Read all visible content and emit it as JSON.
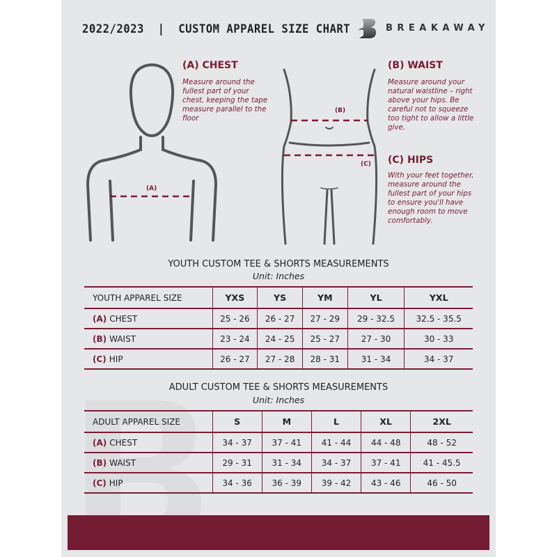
{
  "header": {
    "title": "2022/2023  |  CUSTOM APPAREL SIZE CHART",
    "brand": "BREAKAWAY",
    "logo_letter": "B"
  },
  "colors": {
    "accent": "#7a1b33",
    "background": "#e6e7e8",
    "band": "#731c32"
  },
  "measures": {
    "chest": {
      "heading": "(A) CHEST",
      "marker": "(A)",
      "text": "Measure around the fullest part of your chest, keeping the tape measure parallel to the floor"
    },
    "waist": {
      "heading": "(B) WAIST",
      "marker": "(B)",
      "text": "Measure around your natural waistline – right above your hips. Be careful not to squeeze too tight to allow a little give."
    },
    "hips": {
      "heading": "(C) HIPS",
      "marker": "(C)",
      "text": "With your feet together, measure around the fullest part of your hips to ensure you'll have enough room to move comfortably."
    }
  },
  "youth": {
    "caption": "YOUTH CUSTOM TEE & SHORTS MEASUREMENTS",
    "unit": "Unit: Inches",
    "headers": [
      "YOUTH APPAREL SIZE",
      "YXS",
      "YS",
      "YM",
      "YL",
      "YXL"
    ],
    "rows": [
      {
        "code": "(A)",
        "label": "CHEST",
        "values": [
          "25 - 26",
          "26 - 27",
          "27 - 29",
          "29 - 32.5",
          "32.5 - 35.5"
        ]
      },
      {
        "code": "(B)",
        "label": "WAIST",
        "values": [
          "23 - 24",
          "24 - 25",
          "25 - 27",
          "27 - 30",
          "30 - 33"
        ]
      },
      {
        "code": "(C)",
        "label": "HIP",
        "values": [
          "26 - 27",
          "27 - 28",
          "28 - 31",
          "31 - 34",
          "34 - 37"
        ]
      }
    ]
  },
  "adult": {
    "caption": "ADULT CUSTOM TEE & SHORTS MEASUREMENTS",
    "unit": "Unit: Inches",
    "headers": [
      "ADULT APPAREL SIZE",
      "S",
      "M",
      "L",
      "XL",
      "2XL"
    ],
    "rows": [
      {
        "code": "(A)",
        "label": "CHEST",
        "values": [
          "34 - 37",
          "37 - 41",
          "41 - 44",
          "44 - 48",
          "48 - 52"
        ]
      },
      {
        "code": "(B)",
        "label": "WAIST",
        "values": [
          "29 - 31",
          "31 - 34",
          "34 - 37",
          "37 - 41",
          "41 - 45.5"
        ]
      },
      {
        "code": "(C)",
        "label": "HIP",
        "values": [
          "34 - 36",
          "36 - 39",
          "39 - 42",
          "43 - 46",
          "46 - 50"
        ]
      }
    ]
  }
}
